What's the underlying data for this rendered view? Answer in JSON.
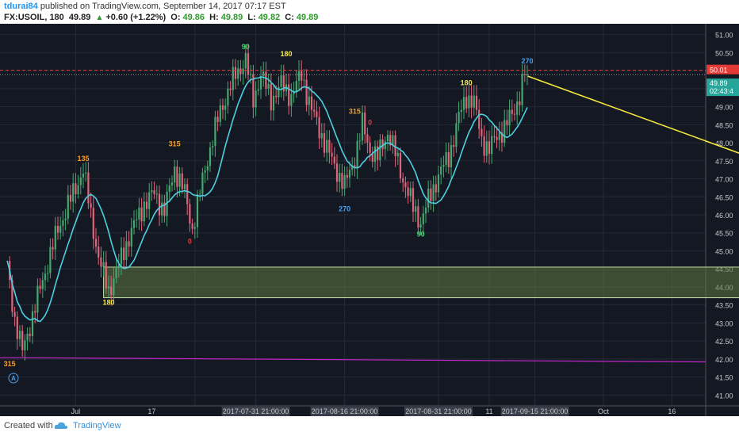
{
  "header": {
    "author": "tdurai84",
    "published": "published on TradingView.com, September 14, 2017 07:17 EST",
    "symbol": "FX:USOIL, 180",
    "last": "49.89",
    "change": "+0.60 (+1.22%)",
    "o_label": "O:",
    "o": "49.86",
    "h_label": "H:",
    "h": "49.89",
    "l_label": "L:",
    "l": "49.82",
    "c_label": "C:",
    "c": "49.89"
  },
  "footer": {
    "created": "Created with",
    "brand": "TradingView"
  },
  "colors": {
    "background": "#141823",
    "up": "#46a86e",
    "down": "#e0657a",
    "ma": "#4dd0e1",
    "zone_fill": "#5d7a44",
    "zone_border": "#c5e1a5",
    "arrow": "#f5e93b",
    "support": "#c026c8",
    "resistance": "#e53935",
    "price_tag": "#26a69a"
  },
  "chart_data": {
    "type": "candlestick",
    "symbol": "FX:USOIL",
    "timeframe": "180",
    "ylim": [
      40.7,
      51.3
    ],
    "y_ticks": [
      "41.00",
      "41.50",
      "42.00",
      "42.50",
      "43.00",
      "43.50",
      "44.00",
      "44.50",
      "45.00",
      "45.50",
      "46.00",
      "46.50",
      "47.00",
      "47.50",
      "48.00",
      "48.50",
      "49.00",
      "49.50",
      "50.00",
      "50.50",
      "51.00"
    ],
    "x_labels": [
      "Jul",
      "17",
      "2017-07-31 21:00:00",
      "2017-08-16 21:00:00",
      "2017-08-31 21:00:00",
      "11",
      "2017-09-15 21:00:00",
      "Oct",
      "16"
    ],
    "price_tags": {
      "resistance": "50.01",
      "last": "49.89",
      "countdown": "02:43:4"
    },
    "close_path": [
      {
        "i": 0,
        "p": 44.6
      },
      {
        "i": 3,
        "p": 43.1
      },
      {
        "i": 6,
        "p": 42.2
      },
      {
        "i": 10,
        "p": 43.2
      },
      {
        "i": 14,
        "p": 44.2
      },
      {
        "i": 20,
        "p": 45.6
      },
      {
        "i": 26,
        "p": 46.6
      },
      {
        "i": 30,
        "p": 47.25
      },
      {
        "i": 33,
        "p": 46.0
      },
      {
        "i": 36,
        "p": 44.8
      },
      {
        "i": 40,
        "p": 43.9
      },
      {
        "i": 44,
        "p": 44.6
      },
      {
        "i": 48,
        "p": 45.4
      },
      {
        "i": 54,
        "p": 46.3
      },
      {
        "i": 58,
        "p": 46.6
      },
      {
        "i": 62,
        "p": 46.1
      },
      {
        "i": 66,
        "p": 47.3
      },
      {
        "i": 70,
        "p": 46.6
      },
      {
        "i": 73,
        "p": 45.6
      },
      {
        "i": 78,
        "p": 47.3
      },
      {
        "i": 84,
        "p": 48.9
      },
      {
        "i": 90,
        "p": 49.9
      },
      {
        "i": 94,
        "p": 50.3
      },
      {
        "i": 97,
        "p": 49.2
      },
      {
        "i": 100,
        "p": 49.9
      },
      {
        "i": 104,
        "p": 49.2
      },
      {
        "i": 108,
        "p": 49.6
      },
      {
        "i": 112,
        "p": 49.3
      },
      {
        "i": 116,
        "p": 49.9
      },
      {
        "i": 120,
        "p": 48.9
      },
      {
        "i": 124,
        "p": 48.2
      },
      {
        "i": 128,
        "p": 47.5
      },
      {
        "i": 133,
        "p": 46.8
      },
      {
        "i": 137,
        "p": 47.6
      },
      {
        "i": 140,
        "p": 48.5
      },
      {
        "i": 143,
        "p": 47.8
      },
      {
        "i": 146,
        "p": 47.6
      },
      {
        "i": 150,
        "p": 48.3
      },
      {
        "i": 153,
        "p": 47.7
      },
      {
        "i": 156,
        "p": 47.0
      },
      {
        "i": 160,
        "p": 46.2
      },
      {
        "i": 163,
        "p": 45.8
      },
      {
        "i": 166,
        "p": 46.4
      },
      {
        "i": 170,
        "p": 47.1
      },
      {
        "i": 174,
        "p": 47.6
      },
      {
        "i": 178,
        "p": 48.7
      },
      {
        "i": 181,
        "p": 49.3
      },
      {
        "i": 184,
        "p": 49.1
      },
      {
        "i": 187,
        "p": 48.1
      },
      {
        "i": 190,
        "p": 47.8
      },
      {
        "i": 193,
        "p": 48.2
      },
      {
        "i": 196,
        "p": 48.4
      },
      {
        "i": 199,
        "p": 48.8
      },
      {
        "i": 202,
        "p": 49.3
      },
      {
        "i": 204,
        "p": 49.89
      }
    ],
    "zone": {
      "x_from_index": 38,
      "x_to": "2017-10-22",
      "y_from": 43.7,
      "y_to": 44.55
    },
    "support_line": {
      "y_start": 42.04,
      "y_end": 41.92
    },
    "resistance_line": {
      "y": 50.01
    },
    "arrow": {
      "from_index": 204,
      "from_y": 49.89,
      "to_date": "2017-10-10",
      "to_y": 44.55
    },
    "cycle_labels": [
      {
        "text": "315",
        "index": 1,
        "y": 41.8,
        "color": "orange"
      },
      {
        "text": "135",
        "index": 30,
        "y": 47.5,
        "color": "orange"
      },
      {
        "text": "180",
        "index": 40,
        "y": 43.5,
        "color": "yellow"
      },
      {
        "text": "315",
        "index": 66,
        "y": 47.9,
        "color": "orange"
      },
      {
        "text": "0",
        "index": 72,
        "y": 45.2,
        "color": "red"
      },
      {
        "text": "90",
        "index": 94,
        "y": 50.6,
        "color": "green"
      },
      {
        "text": "180",
        "index": 110,
        "y": 50.4,
        "color": "yellow"
      },
      {
        "text": "315",
        "index": 137,
        "y": 48.8,
        "color": "orange"
      },
      {
        "text": "0",
        "index": 143,
        "y": 48.5,
        "color": "red"
      },
      {
        "text": "270",
        "index": 133,
        "y": 46.1,
        "color": "blue"
      },
      {
        "text": "90",
        "index": 163,
        "y": 45.4,
        "color": "green"
      },
      {
        "text": "180",
        "index": 181,
        "y": 49.6,
        "color": "yellow"
      },
      {
        "text": "270",
        "index": 205,
        "y": 50.2,
        "color": "blue"
      }
    ],
    "grid": true,
    "currency_badge": "A"
  }
}
